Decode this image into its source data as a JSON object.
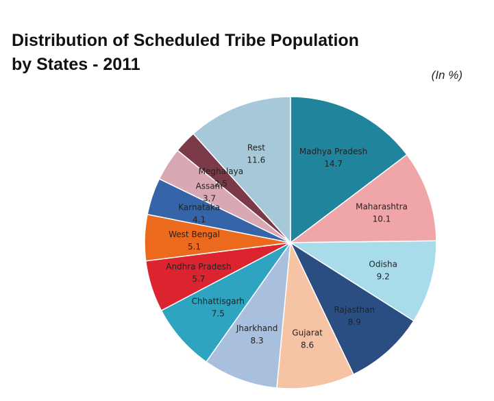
{
  "title_line1": "Distribution of Scheduled Tribe Population",
  "title_line2": "by States - 2011",
  "unit_note": "(In %)",
  "chart_data": {
    "type": "pie",
    "title": "Distribution of Scheduled Tribe Population by States - 2011",
    "unit": "(In %)",
    "slices": [
      {
        "label": "Madhya Pradesh",
        "value": 14.7,
        "value_label": "14.7",
        "color": "#1f849c"
      },
      {
        "label": "Maharashtra",
        "value": 10.1,
        "value_label": "10.1",
        "color": "#f0a6a8"
      },
      {
        "label": "Odisha",
        "value": 9.2,
        "value_label": "9.2",
        "color": "#a8dcea"
      },
      {
        "label": "Rajasthan",
        "value": 8.9,
        "value_label": "8.9",
        "color": "#2a4e82"
      },
      {
        "label": "Gujarat",
        "value": 8.6,
        "value_label": "8.6",
        "color": "#f6c3a4"
      },
      {
        "label": "Jharkhand",
        "value": 8.3,
        "value_label": "8.3",
        "color": "#a9bfde"
      },
      {
        "label": "Chhattisgarh",
        "value": 7.5,
        "value_label": "7.5",
        "color": "#2ea4c0"
      },
      {
        "label": "Andhra Pradesh",
        "value": 5.7,
        "value_label": "5.7",
        "color": "#dc2430"
      },
      {
        "label": "West Bengal",
        "value": 5.1,
        "value_label": "5.1",
        "color": "#ec6a1e"
      },
      {
        "label": "Karnataka",
        "value": 4.1,
        "value_label": "4.1",
        "color": "#3564a8"
      },
      {
        "label": "Assam",
        "value": 3.7,
        "value_label": "3.7",
        "color": "#d8a8b4"
      },
      {
        "label": "Meghalaya",
        "value": 2.5,
        "value_label": "2.5",
        "color": "#7a3a48"
      },
      {
        "label": "Rest",
        "value": 11.6,
        "value_label": "11.6",
        "color": "#a7c8d8"
      }
    ],
    "start_angle_deg": 0,
    "direction": "clockwise",
    "legend": "none"
  }
}
